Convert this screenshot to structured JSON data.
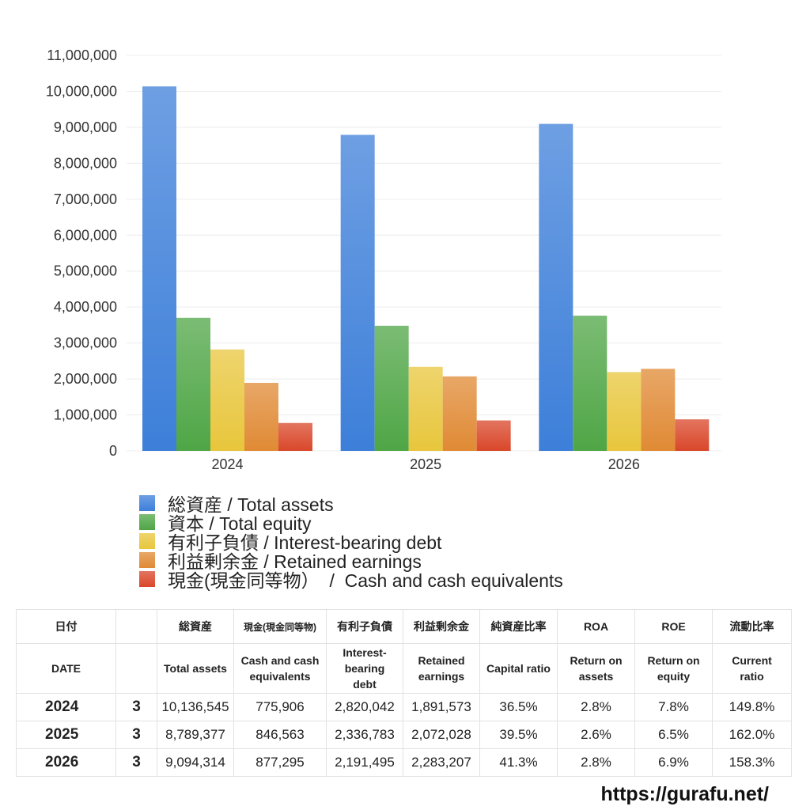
{
  "chart_data": {
    "type": "bar",
    "categories": [
      "2024",
      "2025",
      "2026"
    ],
    "series": [
      {
        "name": "総資産 / Total assets",
        "color": "#3d7fd9",
        "values": [
          10136545,
          8789377,
          9094314
        ]
      },
      {
        "name": "資本 / Total equity",
        "color": "#4fa646",
        "values": [
          3700000,
          3480000,
          3760000
        ]
      },
      {
        "name": "有利子負債 / Interest-bearing debt",
        "color": "#e8c63c",
        "values": [
          2820042,
          2336783,
          2191495
        ]
      },
      {
        "name": "利益剰余金 / Retained earnings",
        "color": "#e08a34",
        "values": [
          1891573,
          2072028,
          2283207
        ]
      },
      {
        "name": "現金(現金同等物）  /  Cash and cash equivalents",
        "color": "#d9472a",
        "values": [
          775906,
          846563,
          877295
        ]
      }
    ],
    "yticks": [
      "11,000,000",
      "10,000,000",
      "9,000,000",
      "8,000,000",
      "7,000,000",
      "6,000,000",
      "5,000,000",
      "4,000,000",
      "3,000,000",
      "2,000,000",
      "1,000,000",
      "0"
    ],
    "ylim": [
      0,
      11000000
    ],
    "grid": true,
    "legend_position": "bottom"
  },
  "table": {
    "header_jp": [
      "日付",
      "",
      "総資産",
      "現金(現金同等物)",
      "有利子負債",
      "利益剰余金",
      "純資産比率",
      "ROA",
      "ROE",
      "流動比率"
    ],
    "header_en": [
      "DATE",
      "",
      "Total assets",
      "Cash and cash\nequivalents",
      "Interest-\nbearing\ndebt",
      "Retained\nearnings",
      "Capital ratio",
      "Return on\nassets",
      "Return on\nequity",
      "Current\nratio"
    ],
    "rows": [
      [
        "2024",
        "3",
        "10,136,545",
        "775,906",
        "2,820,042",
        "1,891,573",
        "36.5%",
        "2.8%",
        "7.8%",
        "149.8%"
      ],
      [
        "2025",
        "3",
        "8,789,377",
        "846,563",
        "2,336,783",
        "2,072,028",
        "39.5%",
        "2.6%",
        "6.5%",
        "162.0%"
      ],
      [
        "2026",
        "3",
        "9,094,314",
        "877,295",
        "2,191,495",
        "2,283,207",
        "41.3%",
        "2.8%",
        "6.9%",
        "158.3%"
      ]
    ]
  },
  "footer": "https://gurafu.net/"
}
